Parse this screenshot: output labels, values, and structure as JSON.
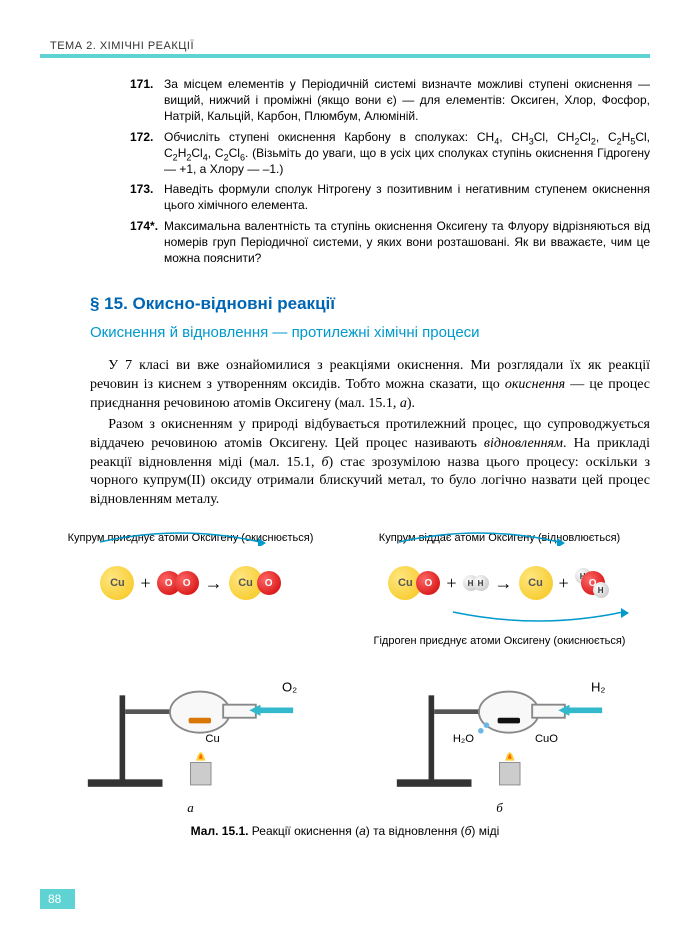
{
  "header": "ТЕМА 2. ХІМІЧНІ РЕАКЦІЇ",
  "exercises": [
    {
      "num": "171.",
      "html": "За місцем елементів у Періодичній системі визначте можливі ступені окиснення — вищий, нижчий і проміжні (якщо вони є) — для елементів: Оксиген, Хлор, Фосфор, Натрій, Кальцій, Карбон, Плюмбум, Алюміній."
    },
    {
      "num": "172.",
      "html": "Обчисліть ступені окиснення Карбону в сполуках: CH<sub>4</sub>, CH<sub>3</sub>Cl, CH<sub>2</sub>Cl<sub>2</sub>, C<sub>2</sub>H<sub>5</sub>Cl, C<sub>2</sub>H<sub>2</sub>Cl<sub>4</sub>, C<sub>2</sub>Cl<sub>6</sub>. (Візьміть до уваги, що в усіх цих сполуках ступінь окиснення Гідрогену — +1, а Хлору — –1.)"
    },
    {
      "num": "173.",
      "html": "Наведіть формули сполук Нітрогену з позитивним і негативним ступенем окиснення цього хімічного елемента."
    },
    {
      "num": "174*.",
      "html": "Максимальна валентність та ступінь окиснення Оксигену та Флуору відрізняються від номерів груп Періодичної системи, у яких вони розташовані. Як ви вважаєте, чим це можна пояснити?"
    }
  ],
  "section_title": "§ 15. Окисно-відновні реакції",
  "section_sub": "Окиснення й відновлення — протилежні хімічні процеси",
  "paragraphs": [
    "У 7 класі ви вже ознайомилися з реакціями окиснення. Ми розглядали їх як реакції речовин із киснем з утворенням оксидів. Тобто можна сказати, що <span class=\"em\">окиснення</span> — це процес приєднання речовиною атомів Оксигену (мал. 15.1, <span class=\"em\">а</span>).",
    "Разом з окисненням у природі відбувається протилежний процес, що супроводжується віддачею речовиною атомів Оксигену. Цей процес називають <span class=\"em\">відновленням</span>. На прикладі реакції відновлення міді (мал. 15.1, <span class=\"em\">б</span>) стає зрозумілою назва цього процесу: оскільки з чорного купрум(II) оксиду отримали блискучий метал, то було логічно назвати цей процес відновленням металу."
  ],
  "diagram_a": {
    "top_label": "Купрум приєднує атоми Оксигену (окиснюється)"
  },
  "diagram_b": {
    "top_label": "Купрум віддає атоми Оксигену (відновлюється)",
    "bottom_label": "Гідроген приєднує атоми Оксигену (окиснюється)"
  },
  "setup_labels": {
    "a": {
      "o2": "O₂",
      "cu": "Cu"
    },
    "b": {
      "h2": "H₂",
      "cuo": "CuO",
      "h2o": "H₂O"
    }
  },
  "fig_letter_a": "а",
  "fig_letter_b": "б",
  "fig_caption_html": "<b>Мал. 15.1.</b> Реакції окиснення (<i>а</i>) та відновлення (<i>б</i>) міді",
  "page_num": "88",
  "colors": {
    "cyan": "#5fd3d3",
    "blue_title": "#0066b3",
    "blue_sub": "#0099cc",
    "cu": "#f5c518",
    "o": "#cc0000",
    "h": "#cccccc"
  }
}
